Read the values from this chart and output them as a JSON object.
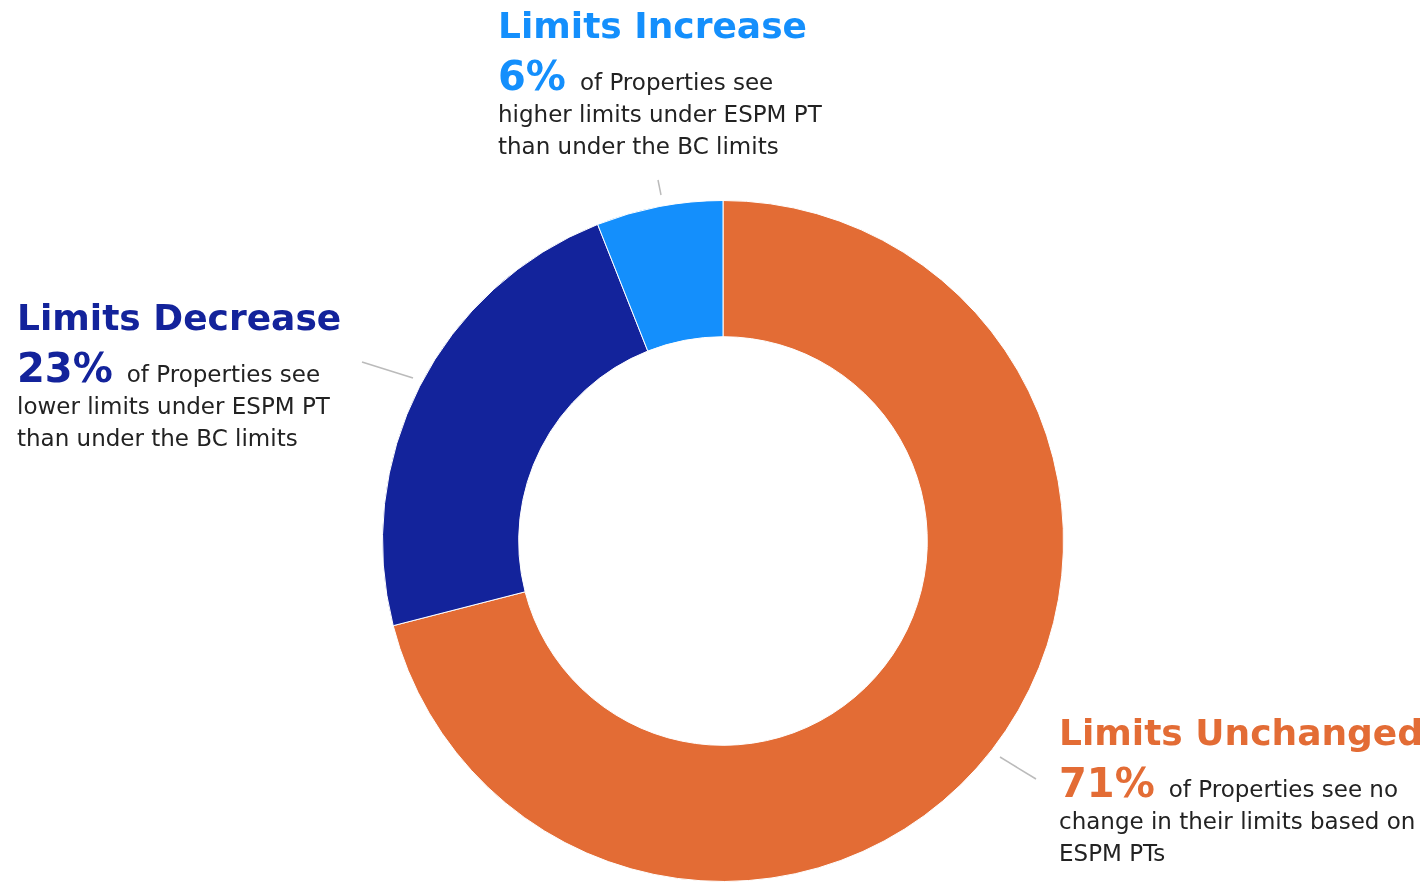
{
  "chart_data": {
    "type": "donut",
    "categories": [
      "Limits Unchanged",
      "Limits Decrease",
      "Limits Increase"
    ],
    "values": [
      71,
      23,
      6
    ],
    "value_labels": [
      "71%",
      "23%",
      "6%"
    ],
    "colors": [
      "#e36c35",
      "#13239b",
      "#148ffc"
    ],
    "annotations": [
      "of Properties see no change in their limits based on ESPM PTs",
      "of Properties see lower limits under ESPM PT than under the BC limits",
      "of Properties see higher limits under ESPM PT than under the BC limits"
    ],
    "legend": false
  }
}
